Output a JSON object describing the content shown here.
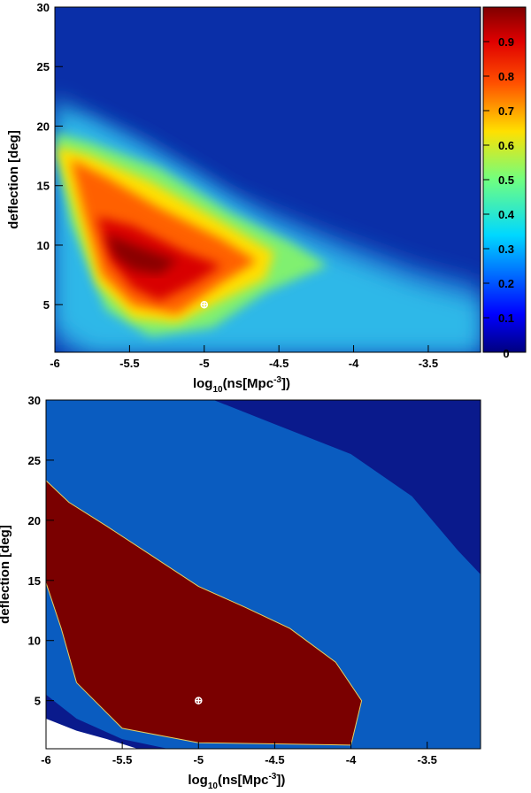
{
  "chart_data": [
    {
      "type": "heatmap",
      "title": "",
      "xlabel": "log",
      "xlabel_sub": "10",
      "xlabel_tail": "(ns[Mpc",
      "xlabel_sup": "-3",
      "xlabel_end": "])",
      "ylabel": "deflection [deg]",
      "xlim": [
        -6,
        -3.15
      ],
      "ylim": [
        1,
        30
      ],
      "xticks": [
        -6,
        -5.5,
        -5,
        -4.5,
        -4,
        -3.5
      ],
      "xtick_labels": [
        "-6",
        "-5.5",
        "-5",
        "-4.5",
        "-4",
        "-3.5"
      ],
      "yticks": [
        5,
        10,
        15,
        20,
        25,
        30
      ],
      "ytick_labels": [
        "5",
        "10",
        "15",
        "20",
        "25",
        "30"
      ],
      "colorbar": {
        "range": [
          0,
          1
        ],
        "ticks": [
          0,
          0.1,
          0.2,
          0.3,
          0.4,
          0.5,
          0.6,
          0.7,
          0.8,
          0.9
        ],
        "tick_labels": [
          "0",
          "0.1",
          "0.2",
          "0.3",
          "0.4",
          "0.5",
          "0.6",
          "0.7",
          "0.8",
          "0.9"
        ],
        "colormap": "jet"
      },
      "grid": false,
      "marker": {
        "x": -5,
        "y": 5,
        "symbol": "cross"
      },
      "value_description_points": [
        {
          "x": -5.4,
          "y": 9,
          "value": 0.97
        },
        {
          "x": -5.0,
          "y": 6,
          "value": 0.88
        },
        {
          "x": -4.6,
          "y": 7,
          "value": 0.6
        },
        {
          "x": -4.2,
          "y": 8,
          "value": 0.45
        },
        {
          "x": -5.8,
          "y": 17,
          "value": 0.6
        },
        {
          "x": -3.5,
          "y": 5,
          "value": 0.25
        },
        {
          "x": -3.5,
          "y": 25,
          "value": 0.05
        }
      ]
    },
    {
      "type": "heatmap",
      "title": "",
      "xlabel": "log",
      "xlabel_sub": "10",
      "xlabel_tail": "(ns[Mpc",
      "xlabel_sup": "-3",
      "xlabel_end": "])",
      "ylabel": "deflection [deg]",
      "xlim": [
        -6,
        -3.15
      ],
      "ylim": [
        1,
        30
      ],
      "xticks": [
        -6,
        -5.5,
        -5,
        -4.5,
        -4,
        -3.5
      ],
      "xtick_labels": [
        "-6",
        "-5.5",
        "-5",
        "-4.5",
        "-4",
        "-3.5"
      ],
      "yticks": [
        5,
        10,
        15,
        20,
        25,
        30
      ],
      "yticklabels": [
        "5",
        "10",
        "15",
        "20",
        "25",
        "30"
      ],
      "grid": false,
      "marker": {
        "x": -5,
        "y": 5,
        "symbol": "cross"
      },
      "regions": [
        {
          "level": "inner",
          "color": "#7a0000",
          "boundary": [
            [
              -6,
              23.3
            ],
            [
              -5.85,
              21.5
            ],
            [
              -5.6,
              19.5
            ],
            [
              -5.3,
              17
            ],
            [
              -5,
              14.5
            ],
            [
              -4.7,
              12.8
            ],
            [
              -4.4,
              11
            ],
            [
              -4.1,
              8.2
            ],
            [
              -3.93,
              5
            ],
            [
              -4.0,
              1.3
            ],
            [
              -5.0,
              1.5
            ],
            [
              -5.5,
              2.7
            ],
            [
              -5.8,
              6.5
            ],
            [
              -5.9,
              11
            ],
            [
              -6,
              14.8
            ]
          ]
        },
        {
          "level": "middle",
          "color": "#0a5cc0",
          "boundary": [
            [
              -6,
              30
            ],
            [
              -4.9,
              30
            ],
            [
              -4.5,
              28
            ],
            [
              -4,
              25.5
            ],
            [
              -3.6,
              22
            ],
            [
              -3.3,
              17.5
            ],
            [
              -3.15,
              15.5
            ],
            [
              -3.15,
              1
            ],
            [
              -5.2,
              1
            ],
            [
              -5.5,
              1.8
            ],
            [
              -5.8,
              3.5
            ],
            [
              -6,
              5.5
            ]
          ]
        },
        {
          "level": "outer",
          "color": "#0a1a8c"
        },
        {
          "level": "excluded",
          "color": "#ffffff",
          "boundary": [
            [
              -6,
              1
            ],
            [
              -6,
              3.5
            ],
            [
              -5.8,
              2.5
            ],
            [
              -5.6,
              1.8
            ],
            [
              -5.4,
              1
            ]
          ]
        }
      ]
    }
  ]
}
